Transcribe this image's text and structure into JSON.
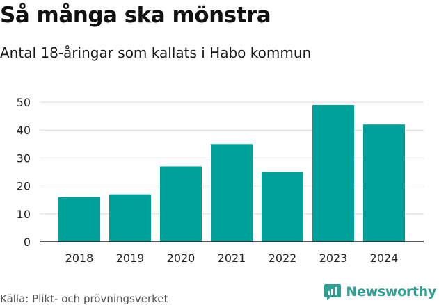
{
  "title": "Så många ska mönstra",
  "subtitle": "Antal 18-åringar som kallats i Habo kommun",
  "source": "Källa: Plikt- och prövningsverket",
  "brand": {
    "name": "Newsworthy",
    "icon": "newsworthy-logo-icon",
    "color": "#2f9e93"
  },
  "chart_data": {
    "type": "bar",
    "categories": [
      "2018",
      "2019",
      "2020",
      "2021",
      "2022",
      "2023",
      "2024"
    ],
    "values": [
      16,
      17,
      27,
      35,
      25,
      49,
      42
    ],
    "ylim": [
      0,
      50
    ],
    "yticks": [
      0,
      10,
      20,
      30,
      40,
      50
    ],
    "grid": true,
    "bar_color": "#00a19a",
    "xlabel": "",
    "ylabel": ""
  }
}
